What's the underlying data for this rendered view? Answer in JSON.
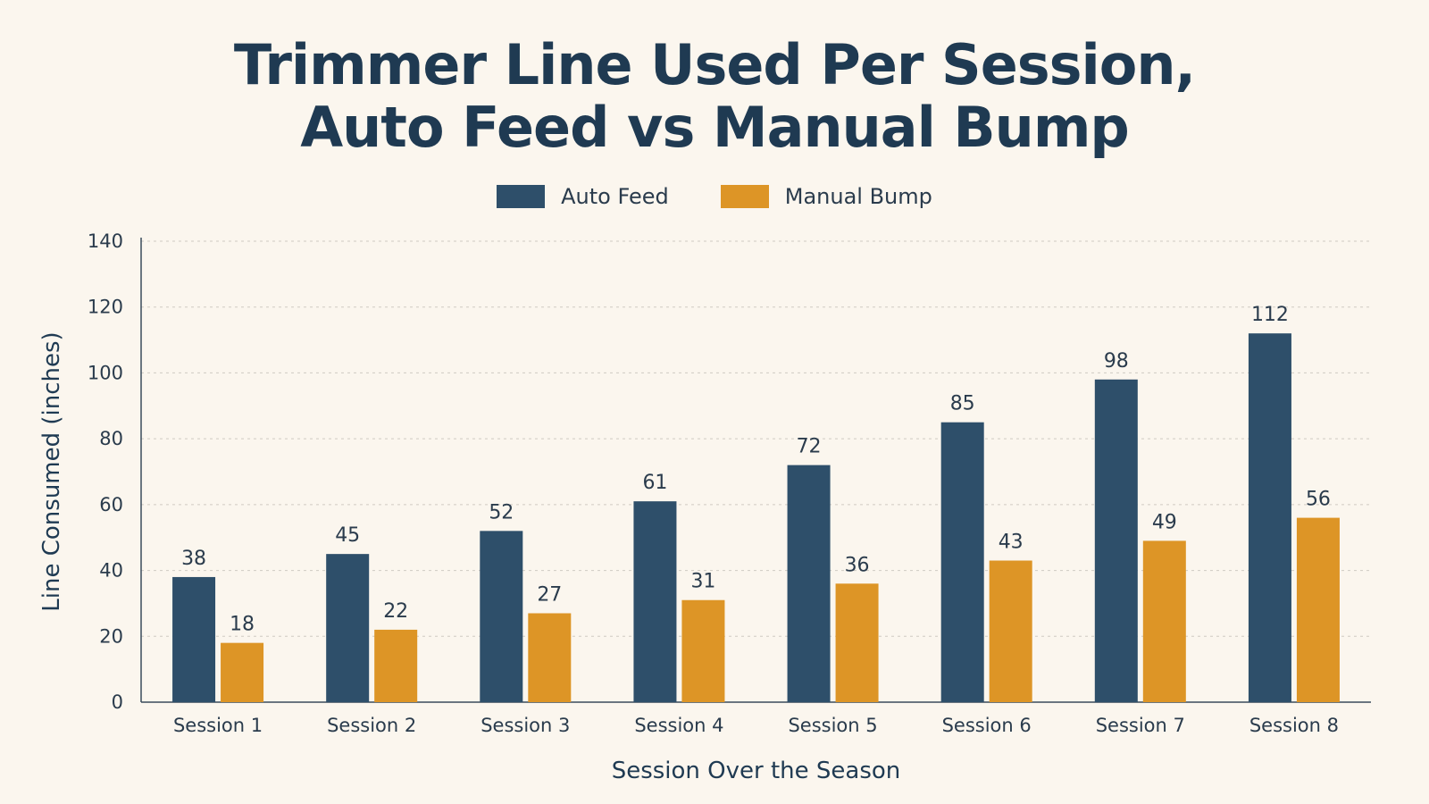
{
  "chart_data": {
    "type": "bar",
    "title_lines": [
      "Trimmer Line Used Per Session,",
      "Auto Feed vs Manual Bump"
    ],
    "xlabel": "Session Over the Season",
    "ylabel": "Line Consumed (inches)",
    "ylim": [
      0,
      140
    ],
    "yticks": [
      0,
      20,
      40,
      60,
      80,
      100,
      120,
      140
    ],
    "categories": [
      "Session 1",
      "Session 2",
      "Session 3",
      "Session 4",
      "Session 5",
      "Session 6",
      "Session 7",
      "Session 8"
    ],
    "series": [
      {
        "name": "Auto Feed",
        "color": "#2e4f6a",
        "values": [
          38,
          45,
          52,
          61,
          72,
          85,
          98,
          112
        ]
      },
      {
        "name": "Manual Bump",
        "color": "#dd9526",
        "values": [
          18,
          22,
          27,
          31,
          36,
          43,
          49,
          56
        ]
      }
    ],
    "grid": "horizontal-dotted",
    "legend_position": "top-center",
    "data_labels": true
  }
}
